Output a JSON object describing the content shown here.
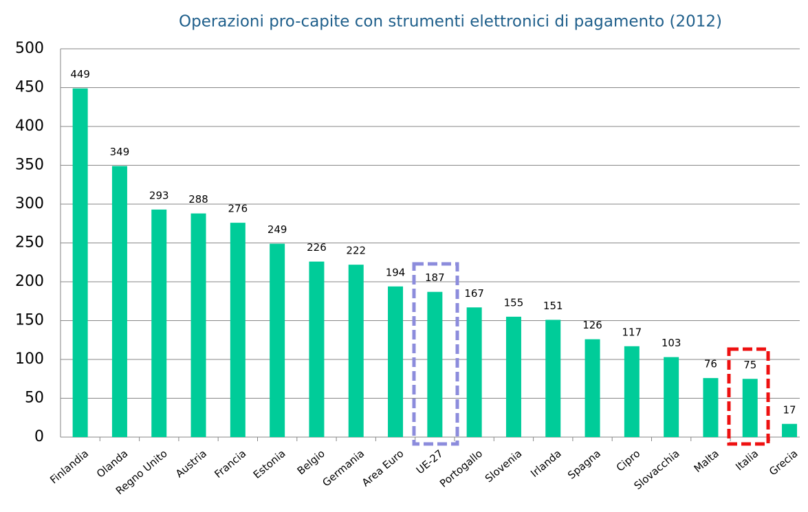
{
  "chart_data": {
    "type": "bar",
    "title": "Operazioni pro-capite con strumenti elettronici di pagamento (2012)",
    "categories": [
      "Finlandia",
      "Olanda",
      "Regno Unito",
      "Austria",
      "Francia",
      "Estonia",
      "Belgio",
      "Germania",
      "Area Euro",
      "UE-27",
      "Portogallo",
      "Slovenia",
      "Irlanda",
      "Spagna",
      "Cipro",
      "Slovacchia",
      "Malta",
      "Italia",
      "Grecia"
    ],
    "values": [
      449,
      349,
      293,
      288,
      276,
      249,
      226,
      222,
      194,
      187,
      167,
      155,
      151,
      126,
      117,
      103,
      76,
      75,
      17
    ],
    "color": "#00cc99",
    "ylim": [
      0,
      500
    ],
    "yticks": [
      0,
      50,
      100,
      150,
      200,
      250,
      300,
      350,
      400,
      450,
      500
    ],
    "grid": true
  }
}
